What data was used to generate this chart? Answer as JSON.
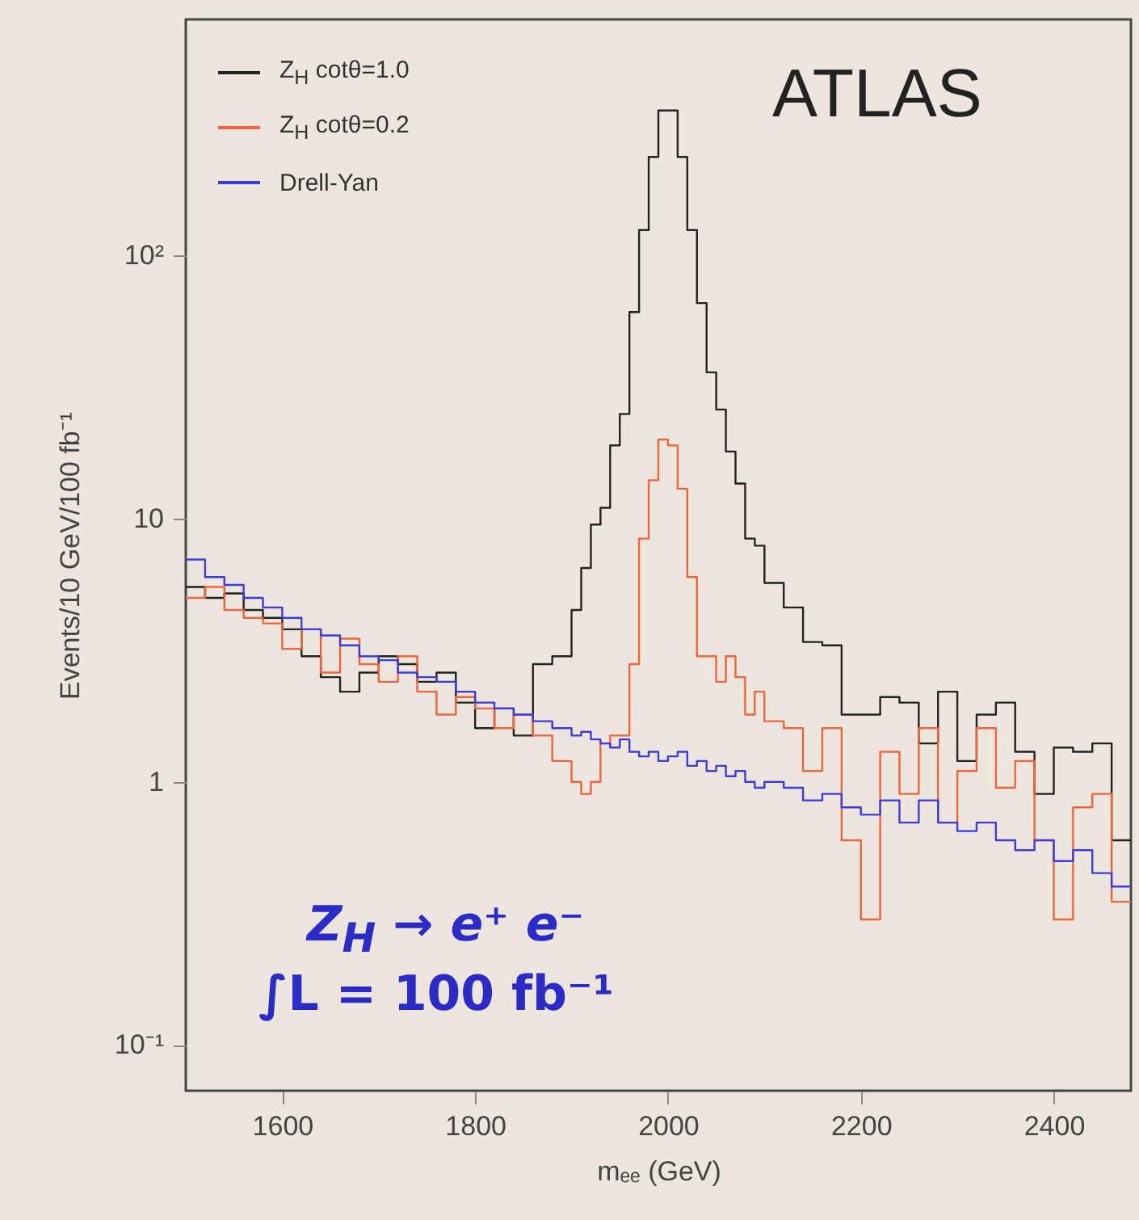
{
  "chart_data": {
    "type": "histogram",
    "xlabel": "mₑₑ (GeV)",
    "ylabel": "Events/10 GeV/100 fb⁻¹",
    "bins": [
      1500,
      1520,
      1540,
      1560,
      1580,
      1600,
      1620,
      1640,
      1660,
      1680,
      1700,
      1720,
      1740,
      1760,
      1780,
      1800,
      1820,
      1840,
      1860,
      1880,
      1900,
      1910,
      1920,
      1930,
      1940,
      1950,
      1960,
      1970,
      1980,
      1990,
      2000,
      2010,
      2020,
      2030,
      2040,
      2050,
      2060,
      2070,
      2080,
      2090,
      2100,
      2120,
      2140,
      2160,
      2180,
      2200,
      2220,
      2240,
      2260,
      2280,
      2300,
      2320,
      2340,
      2360,
      2380,
      2400,
      2420,
      2440,
      2460,
      2480
    ],
    "series": [
      {
        "name": "Z$_{H}$ cotθ=1.0",
        "color": "#222222",
        "values": [
          5.5,
          5.0,
          5.2,
          4.5,
          4.2,
          3.8,
          3.0,
          2.5,
          2.2,
          2.6,
          3.0,
          2.8,
          2.4,
          2.6,
          2.0,
          1.6,
          1.9,
          1.5,
          2.8,
          3.0,
          4.5,
          6.5,
          9.5,
          11,
          19,
          25,
          61,
          125,
          237,
          356,
          356,
          237,
          125,
          66,
          36,
          26,
          18,
          13.6,
          8.4,
          7.9,
          5.7,
          4.6,
          3.4,
          3.3,
          1.8,
          1.8,
          2.1,
          2.0,
          1.4,
          2.2,
          1.2,
          1.8,
          2.0,
          1.3,
          0.9,
          1.35,
          1.3,
          1.4,
          0.6
        ]
      },
      {
        "name": "Z$_{H}$ cotθ=0.2",
        "color": "#f0643c",
        "values": [
          5.0,
          5.5,
          4.5,
          4.2,
          4.0,
          3.2,
          3.8,
          2.6,
          3.5,
          2.8,
          2.4,
          3.0,
          2.2,
          1.8,
          2.1,
          1.9,
          1.6,
          1.8,
          1.5,
          1.2,
          1.0,
          0.9,
          1.0,
          1.4,
          1.5,
          1.5,
          2.8,
          8.4,
          14,
          20,
          19,
          13,
          6,
          3.0,
          3.0,
          2.4,
          3.0,
          2.5,
          1.8,
          2.2,
          1.7,
          1.6,
          1.1,
          1.6,
          0.6,
          0.3,
          1.3,
          0.9,
          1.6,
          0.7,
          1.1,
          1.6,
          0.95,
          1.2,
          0.6,
          0.3,
          0.8,
          0.9,
          0.35
        ]
      },
      {
        "name": "Drell-Yan",
        "color": "#3c3cdc",
        "values": [
          7.0,
          6.0,
          5.6,
          5.0,
          4.6,
          4.2,
          3.8,
          3.6,
          3.3,
          3.0,
          2.9,
          2.6,
          2.5,
          2.4,
          2.2,
          2.0,
          1.9,
          1.8,
          1.7,
          1.6,
          1.5,
          1.55,
          1.45,
          1.4,
          1.35,
          1.45,
          1.3,
          1.25,
          1.3,
          1.2,
          1.25,
          1.3,
          1.15,
          1.2,
          1.1,
          1.15,
          1.05,
          1.1,
          1.0,
          0.95,
          1.0,
          0.95,
          0.85,
          0.9,
          0.8,
          0.75,
          0.85,
          0.7,
          0.85,
          0.7,
          0.65,
          0.7,
          0.6,
          0.55,
          0.6,
          0.5,
          0.55,
          0.45,
          0.4
        ]
      }
    ],
    "xlim": [
      1500,
      2480
    ],
    "xticks": [
      1600,
      1800,
      2000,
      2200,
      2400
    ],
    "ylim": [
      0.067,
      790
    ],
    "yticks": [
      {
        "value": 0.1,
        "label": "10⁻¹"
      },
      1,
      10,
      {
        "value": 100,
        "label": "10²"
      }
    ],
    "log": true,
    "legend": "top left",
    "annotations": [
      "ATLAS",
      "Z$_{H}$ → e⁺ e⁻",
      "∫L = 100 fb⁻¹"
    ]
  }
}
